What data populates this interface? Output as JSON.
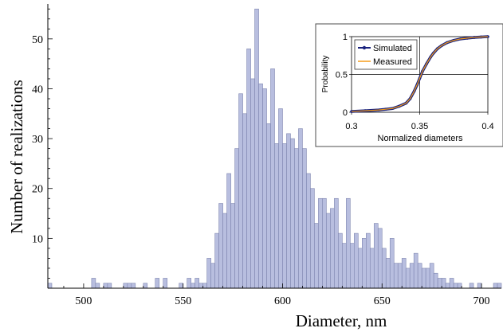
{
  "chart_data": [
    {
      "type": "bar",
      "title": "",
      "xlabel": "Diameter, nm",
      "ylabel": "Number of realizations",
      "xlim": [
        482,
        710
      ],
      "ylim": [
        0,
        57
      ],
      "xticks": [
        500,
        550,
        600,
        650,
        700
      ],
      "yticks": [
        10,
        20,
        30,
        40,
        50
      ],
      "grid": false,
      "bin_width": 2,
      "bar_color": "#b8bedf",
      "bar_edge_color": "#7f86b0",
      "bins": [
        {
          "x": 483,
          "count": 1
        },
        {
          "x": 505,
          "count": 2
        },
        {
          "x": 507,
          "count": 1
        },
        {
          "x": 511,
          "count": 1
        },
        {
          "x": 513,
          "count": 1
        },
        {
          "x": 521,
          "count": 1
        },
        {
          "x": 523,
          "count": 1
        },
        {
          "x": 525,
          "count": 1
        },
        {
          "x": 531,
          "count": 1
        },
        {
          "x": 537,
          "count": 2
        },
        {
          "x": 541,
          "count": 2
        },
        {
          "x": 549,
          "count": 1
        },
        {
          "x": 553,
          "count": 2
        },
        {
          "x": 555,
          "count": 1
        },
        {
          "x": 557,
          "count": 2
        },
        {
          "x": 559,
          "count": 1
        },
        {
          "x": 561,
          "count": 1
        },
        {
          "x": 563,
          "count": 6
        },
        {
          "x": 565,
          "count": 5
        },
        {
          "x": 567,
          "count": 11
        },
        {
          "x": 569,
          "count": 17
        },
        {
          "x": 571,
          "count": 15
        },
        {
          "x": 573,
          "count": 23
        },
        {
          "x": 575,
          "count": 17
        },
        {
          "x": 577,
          "count": 28
        },
        {
          "x": 579,
          "count": 39
        },
        {
          "x": 581,
          "count": 35
        },
        {
          "x": 583,
          "count": 48
        },
        {
          "x": 585,
          "count": 42
        },
        {
          "x": 587,
          "count": 56
        },
        {
          "x": 589,
          "count": 41
        },
        {
          "x": 591,
          "count": 40
        },
        {
          "x": 593,
          "count": 33
        },
        {
          "x": 595,
          "count": 44
        },
        {
          "x": 597,
          "count": 29
        },
        {
          "x": 599,
          "count": 36
        },
        {
          "x": 601,
          "count": 29
        },
        {
          "x": 603,
          "count": 31
        },
        {
          "x": 605,
          "count": 30
        },
        {
          "x": 607,
          "count": 28
        },
        {
          "x": 609,
          "count": 32
        },
        {
          "x": 611,
          "count": 28
        },
        {
          "x": 613,
          "count": 23
        },
        {
          "x": 615,
          "count": 20
        },
        {
          "x": 617,
          "count": 13
        },
        {
          "x": 619,
          "count": 18
        },
        {
          "x": 621,
          "count": 18
        },
        {
          "x": 623,
          "count": 15
        },
        {
          "x": 625,
          "count": 16
        },
        {
          "x": 627,
          "count": 18
        },
        {
          "x": 629,
          "count": 11
        },
        {
          "x": 631,
          "count": 9
        },
        {
          "x": 633,
          "count": 18
        },
        {
          "x": 635,
          "count": 9
        },
        {
          "x": 637,
          "count": 11
        },
        {
          "x": 639,
          "count": 8
        },
        {
          "x": 641,
          "count": 10
        },
        {
          "x": 643,
          "count": 11
        },
        {
          "x": 645,
          "count": 8
        },
        {
          "x": 647,
          "count": 13
        },
        {
          "x": 649,
          "count": 12
        },
        {
          "x": 651,
          "count": 8
        },
        {
          "x": 653,
          "count": 6
        },
        {
          "x": 655,
          "count": 10
        },
        {
          "x": 657,
          "count": 5
        },
        {
          "x": 659,
          "count": 5
        },
        {
          "x": 661,
          "count": 6
        },
        {
          "x": 663,
          "count": 4
        },
        {
          "x": 665,
          "count": 5
        },
        {
          "x": 667,
          "count": 7
        },
        {
          "x": 669,
          "count": 5
        },
        {
          "x": 671,
          "count": 4
        },
        {
          "x": 673,
          "count": 4
        },
        {
          "x": 675,
          "count": 5
        },
        {
          "x": 677,
          "count": 3
        },
        {
          "x": 679,
          "count": 2
        },
        {
          "x": 681,
          "count": 2
        },
        {
          "x": 683,
          "count": 1
        },
        {
          "x": 685,
          "count": 2
        },
        {
          "x": 687,
          "count": 1
        },
        {
          "x": 689,
          "count": 1
        },
        {
          "x": 695,
          "count": 1
        },
        {
          "x": 699,
          "count": 1
        },
        {
          "x": 707,
          "count": 1
        },
        {
          "x": 709,
          "count": 1
        }
      ]
    },
    {
      "type": "line",
      "title": "",
      "xlabel": "Normalized diameters",
      "ylabel": "Probability",
      "xlim": [
        0.3,
        0.4
      ],
      "ylim": [
        0,
        1
      ],
      "xticks": [
        0.3,
        0.35,
        0.4
      ],
      "yticks": [
        0,
        0.5,
        1
      ],
      "grid": true,
      "legend_position": "top-left",
      "series": [
        {
          "name": "Simulated",
          "color": "#1a237e",
          "x": [
            0.3,
            0.31,
            0.32,
            0.325,
            0.33,
            0.335,
            0.34,
            0.343,
            0.346,
            0.348,
            0.35,
            0.352,
            0.355,
            0.358,
            0.36,
            0.363,
            0.366,
            0.37,
            0.375,
            0.38,
            0.385,
            0.39,
            0.395,
            0.4
          ],
          "y": [
            0.01,
            0.02,
            0.03,
            0.04,
            0.05,
            0.08,
            0.12,
            0.18,
            0.28,
            0.36,
            0.45,
            0.54,
            0.64,
            0.73,
            0.78,
            0.84,
            0.88,
            0.92,
            0.95,
            0.97,
            0.98,
            0.99,
            0.995,
            1.0
          ]
        },
        {
          "name": "Measured",
          "color": "#f59c1a",
          "x": [
            0.3,
            0.31,
            0.32,
            0.325,
            0.33,
            0.335,
            0.34,
            0.343,
            0.346,
            0.348,
            0.35,
            0.352,
            0.355,
            0.358,
            0.36,
            0.363,
            0.366,
            0.37,
            0.375,
            0.38,
            0.385,
            0.39,
            0.395,
            0.4
          ],
          "y": [
            0.01,
            0.02,
            0.03,
            0.04,
            0.05,
            0.08,
            0.12,
            0.18,
            0.28,
            0.36,
            0.45,
            0.54,
            0.64,
            0.73,
            0.78,
            0.84,
            0.88,
            0.92,
            0.95,
            0.97,
            0.98,
            0.99,
            0.995,
            1.0
          ]
        }
      ]
    }
  ]
}
